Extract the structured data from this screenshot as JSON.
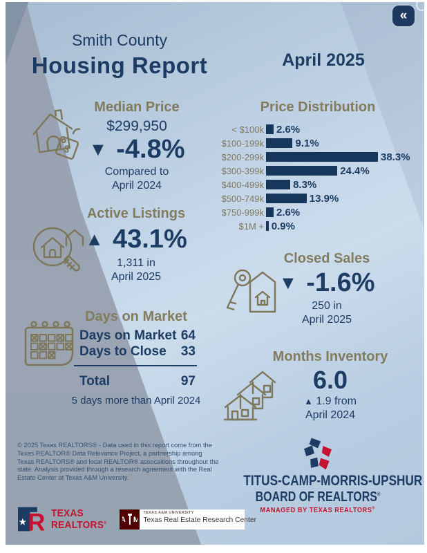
{
  "window": {
    "collapse_glyph": "«"
  },
  "header": {
    "county": "Smith County",
    "title": "Housing Report",
    "period": "April 2025"
  },
  "median_price": {
    "heading": "Median Price",
    "value": "$299,950",
    "arrow": "▼",
    "change": "-4.8%",
    "note_line1": "Compared to",
    "note_line2": "April 2024"
  },
  "chart_data": {
    "type": "bar",
    "orientation": "horizontal",
    "title": "Price Distribution",
    "categories": [
      "< $100k",
      "$100-199k",
      "$200-299k",
      "$300-399k",
      "$400-499k",
      "$500-749k",
      "$750-999k",
      "$1M +"
    ],
    "values": [
      2.6,
      9.1,
      38.3,
      24.4,
      8.3,
      13.9,
      2.6,
      0.9
    ],
    "value_suffix": "%",
    "xlim": [
      0,
      40
    ],
    "grid": false,
    "legend": false,
    "bar_color": "#16365c",
    "label_color": "#7f795f",
    "value_label_color": "#1d3c63"
  },
  "active_listings": {
    "heading": "Active Listings",
    "arrow": "▲",
    "change": "43.1%",
    "note_line1": "1,311 in",
    "note_line2": "April 2025"
  },
  "closed_sales": {
    "heading": "Closed Sales",
    "arrow": "▼",
    "change": "-1.6%",
    "note_line1": "250 in",
    "note_line2": "April 2025"
  },
  "days_on_market": {
    "heading": "Days on Market",
    "rows": [
      {
        "label": "Days on Market",
        "value": "64"
      },
      {
        "label": "Days to Close",
        "value": "33"
      }
    ],
    "total_label": "Total",
    "total_value": "97",
    "note": "5 days more than April 2024"
  },
  "months_inventory": {
    "heading": "Months Inventory",
    "value": "6.0",
    "arrow": "▲",
    "note_line1": "1.9 from",
    "note_line2": "April 2024"
  },
  "disclaimer": "© 2025 Texas REALTORS® - Data used in this report come from the Texas REALTOR® Data Relevance Project, a partnership among Texas REALTORS® and local REALTOR® assocaitions throughout the state. Analysis provided through a research agreement with the Real Estate Center at Texas A&M University.",
  "logos": {
    "texas_realtors": {
      "line1": "TEXAS",
      "line2": "REALTORS",
      "reg": "®"
    },
    "trerc": {
      "monogram": "ATM",
      "university": "TEXAS A&M UNIVERSITY",
      "center": "Texas Real Estate Research Center"
    }
  },
  "board": {
    "line1": "TITUS-CAMP-MORRIS-UPSHUR",
    "line2": "BOARD OF REALTORS",
    "reg": "®",
    "tagline": "MANAGED BY TEXAS REALTORS",
    "tagline_reg": "®"
  },
  "colors": {
    "navy": "#1d3c63",
    "bar_navy": "#16365c",
    "olive": "#827b5e",
    "red": "#c41230",
    "maroon": "#500000",
    "band_gray": "#99a3b2",
    "bg_light": "#c3d5e7"
  }
}
